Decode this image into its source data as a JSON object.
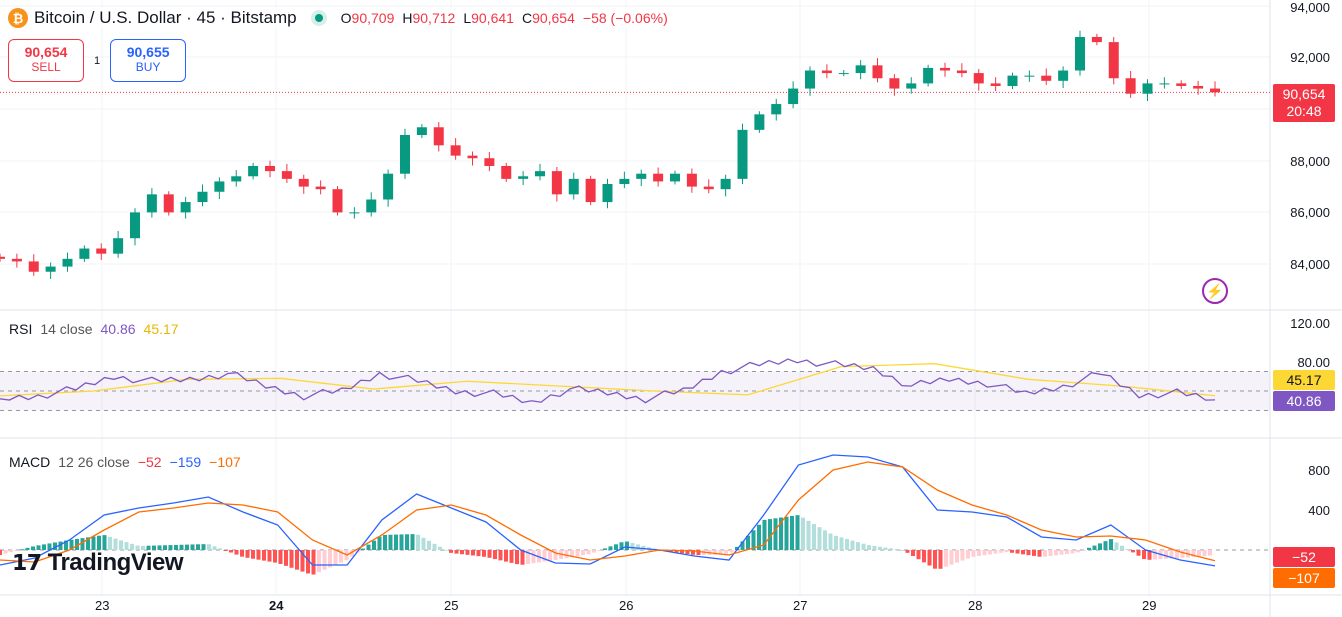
{
  "header": {
    "symbol": "Bitcoin / U.S. Dollar · 45 · Bitstamp",
    "coin_glyph": "₿",
    "open_label": "O",
    "open": "90,709",
    "high_label": "H",
    "high": "90,712",
    "low_label": "L",
    "low": "90,641",
    "close_label": "C",
    "close": "90,654",
    "change": "−58 (−0.06%)"
  },
  "trade": {
    "sell_price": "90,654",
    "sell_label": "SELL",
    "qty": "1",
    "buy_price": "90,655",
    "buy_label": "BUY"
  },
  "price_axis": {
    "ticks": [
      "94,000",
      "92,000",
      "88,000",
      "86,000",
      "84,000"
    ],
    "last_price": "90,654",
    "countdown": "20:48"
  },
  "rsi": {
    "legend_name": "RSI",
    "legend_params": "14 close",
    "value": "40.86",
    "ma_value": "45.17",
    "ticks": [
      "120.00",
      "80.00"
    ]
  },
  "macd": {
    "legend_name": "MACD",
    "legend_params": "12 26 close",
    "hist_value": "−52",
    "macd_value": "−159",
    "signal_value": "−107",
    "ticks": [
      "800",
      "400"
    ]
  },
  "time_axis": [
    "23",
    "24",
    "25",
    "26",
    "27",
    "28",
    "29"
  ],
  "logo": "TradingView",
  "colors": {
    "up": "#089981",
    "down": "#f23645",
    "rsi": "#7e57c2",
    "rsi_ma": "#fdd835",
    "macd": "#2962ff",
    "signal": "#ff6d00"
  },
  "chart_data": {
    "type": "candlestick",
    "title": "Bitcoin / U.S. Dollar · 45 · Bitstamp",
    "ylim": [
      83000,
      94000
    ],
    "closes": [
      84200,
      84100,
      83700,
      83900,
      84200,
      84600,
      84400,
      85000,
      86000,
      86700,
      86000,
      86400,
      86800,
      87200,
      87400,
      87800,
      87600,
      87300,
      87000,
      86900,
      86000,
      86000,
      86500,
      87500,
      89000,
      89300,
      88600,
      88200,
      88100,
      87800,
      87300,
      87400,
      87600,
      86700,
      87300,
      86400,
      87100,
      87300,
      87500,
      87200,
      87500,
      87000,
      86900,
      87300,
      89200,
      89800,
      90200,
      90800,
      91500,
      91400,
      91400,
      91700,
      91200,
      90800,
      91000,
      91600,
      91500,
      91400,
      91000,
      90900,
      91300,
      91300,
      91100,
      91500,
      92800,
      92600,
      91200,
      90600,
      91000,
      91000,
      90900,
      90800,
      90654
    ],
    "rsi_series": [
      42,
      45,
      52,
      65,
      60,
      62,
      68,
      55,
      45,
      50,
      68,
      60,
      50,
      47,
      38,
      52,
      48,
      42,
      50,
      70,
      77,
      82,
      77,
      73,
      55,
      62,
      58,
      47,
      55,
      68,
      46,
      48,
      40.86
    ],
    "rsi_ma_series": [
      45,
      50,
      62,
      63,
      52,
      60,
      55,
      50,
      46,
      75,
      78,
      62,
      55,
      45.17
    ],
    "rsi_levels": [
      70,
      50,
      30
    ],
    "macd_series": [
      -150,
      -80,
      100,
      350,
      420,
      470,
      530,
      380,
      250,
      -150,
      -150,
      300,
      560,
      420,
      280,
      0,
      -130,
      -140,
      30,
      0,
      -60,
      -100,
      350,
      850,
      950,
      930,
      830,
      400,
      380,
      330,
      130,
      100,
      250,
      0,
      -100,
      -159
    ],
    "signal_series": [
      -100,
      -120,
      0,
      200,
      380,
      420,
      470,
      450,
      380,
      100,
      -50,
      150,
      400,
      450,
      350,
      150,
      -30,
      -100,
      -60,
      0,
      -10,
      -50,
      50,
      500,
      800,
      880,
      830,
      600,
      450,
      350,
      200,
      130,
      140,
      100,
      -20,
      -107
    ]
  }
}
